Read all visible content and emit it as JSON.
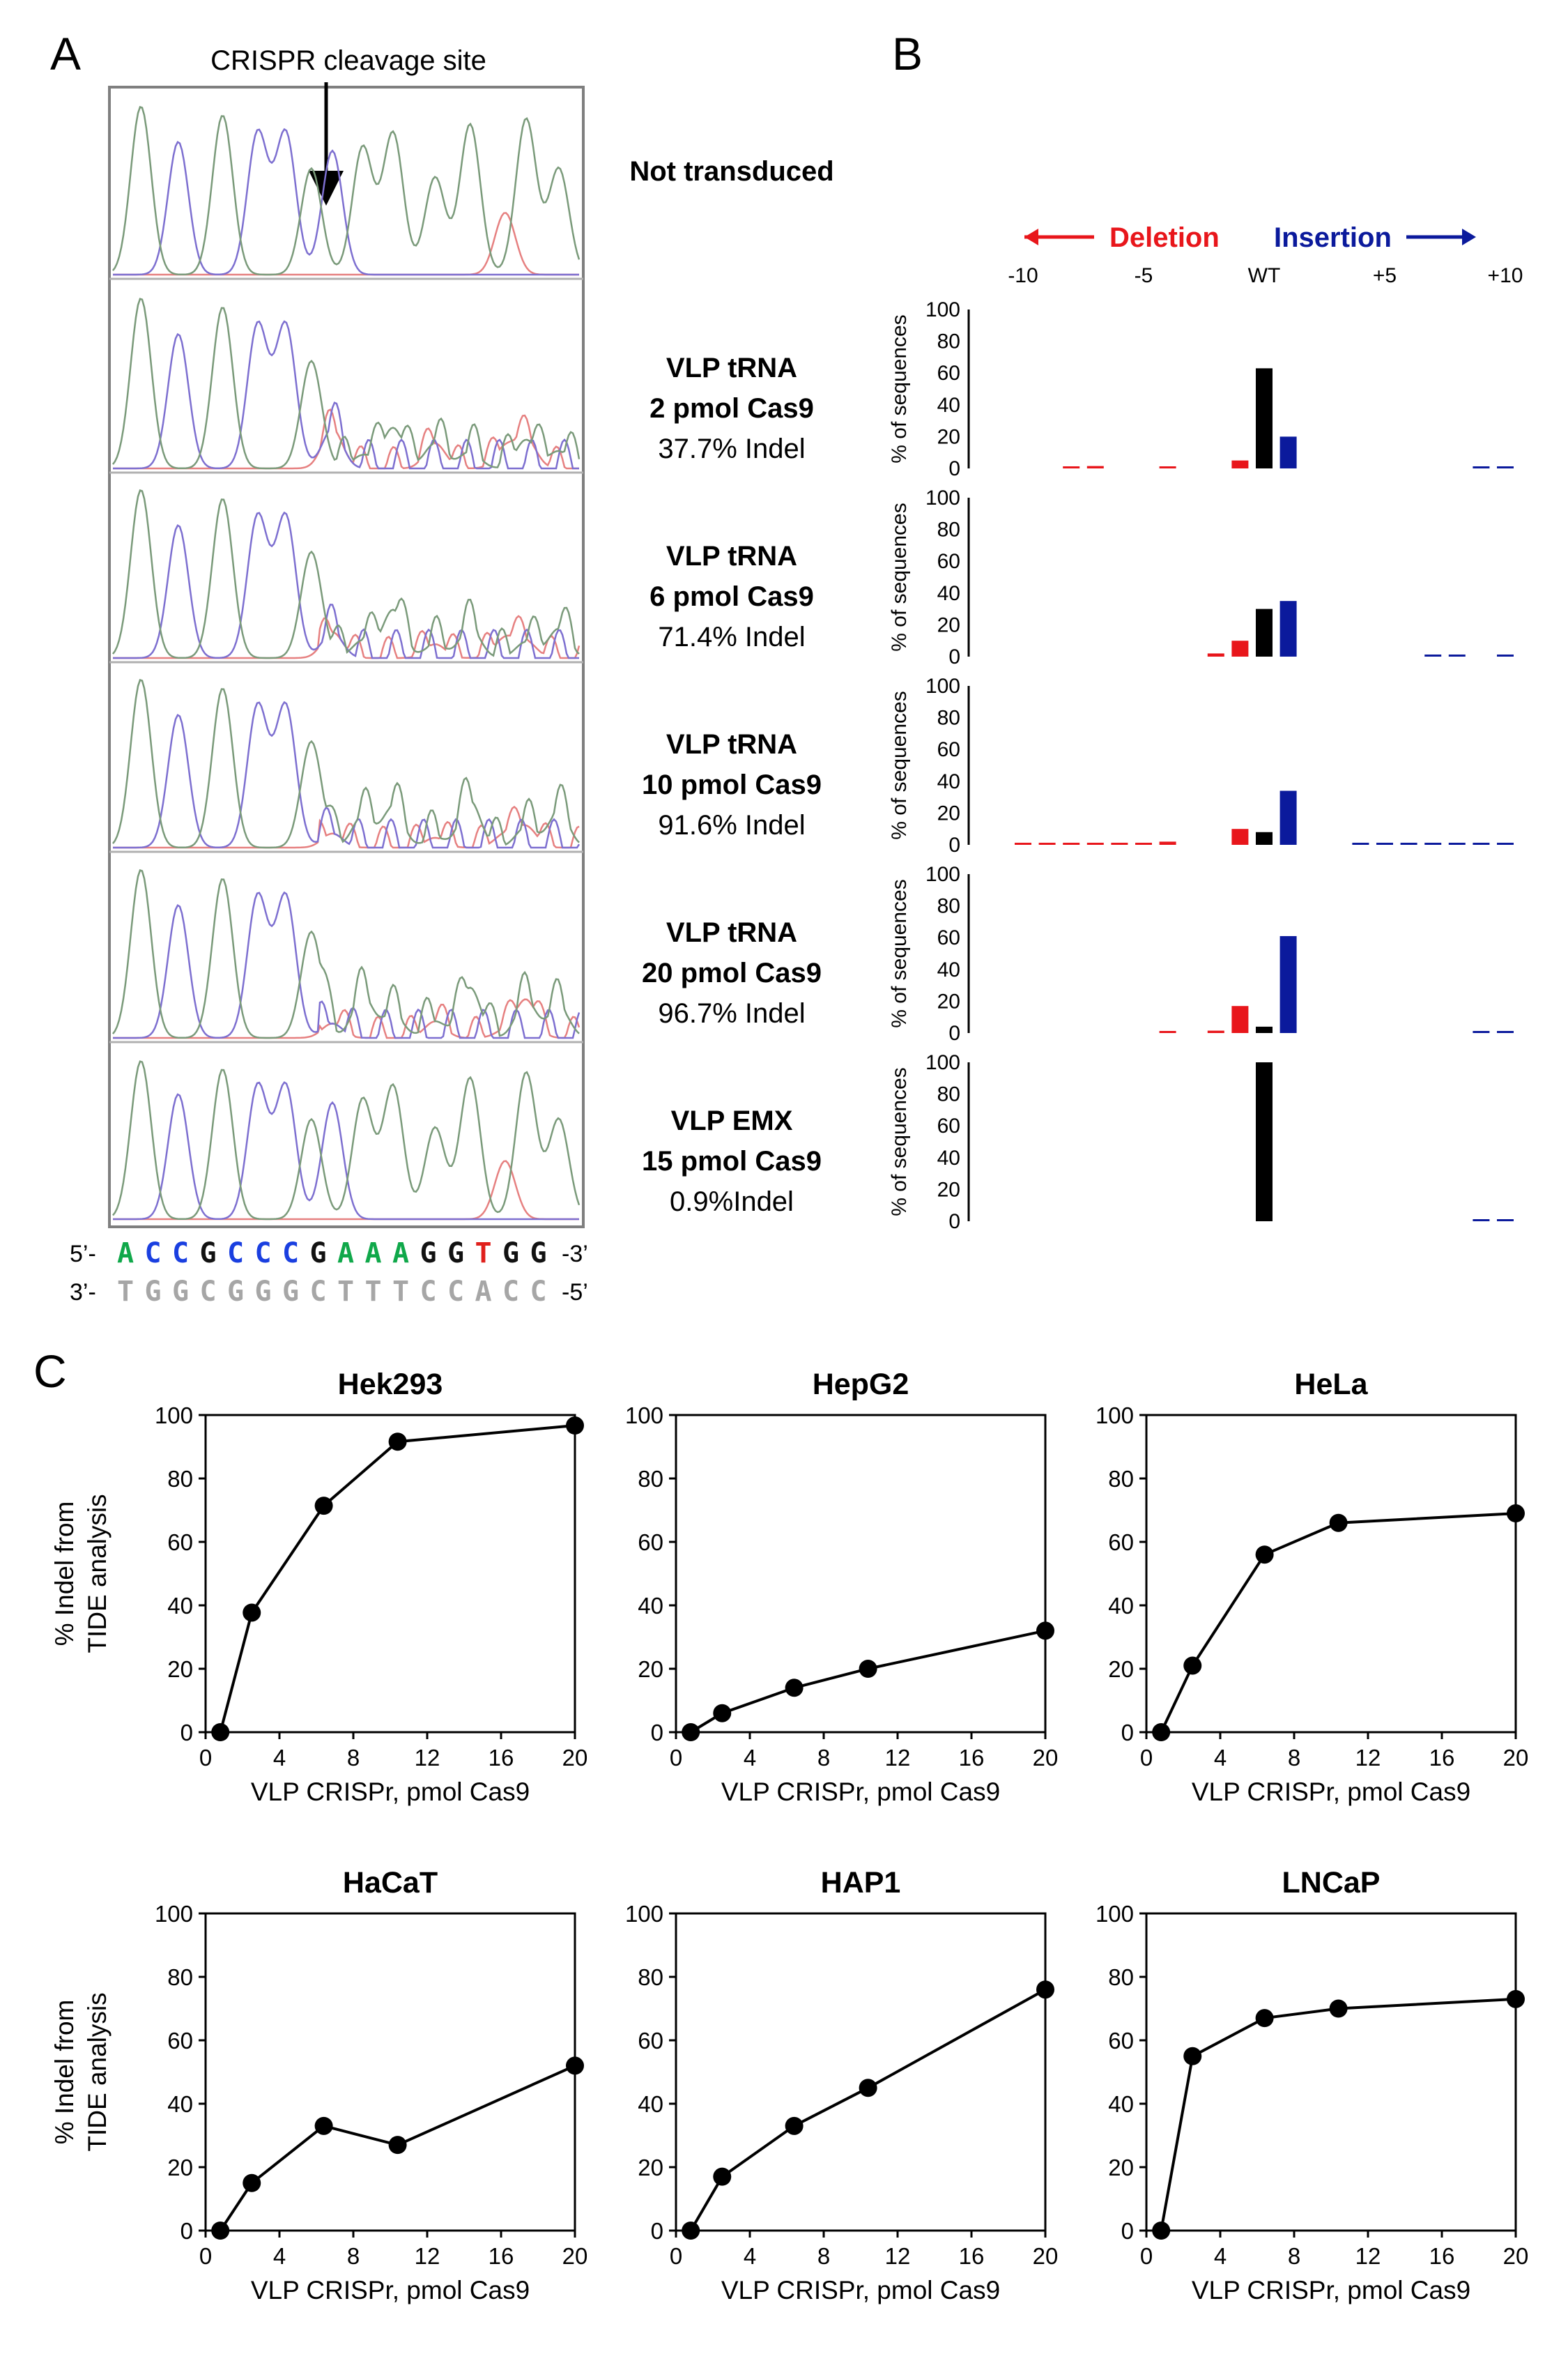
{
  "panel_labels": {
    "a": "A",
    "b": "B",
    "c": "C"
  },
  "panelA": {
    "cleavage_label": "CRISPR cleavage site",
    "samples": [
      {
        "lines": [
          "Not transduced"
        ],
        "bold": [
          true
        ]
      },
      {
        "lines": [
          "VLP tRNA",
          "2 pmol Cas9",
          "37.7% Indel"
        ],
        "bold": [
          true,
          true,
          false
        ]
      },
      {
        "lines": [
          "VLP tRNA",
          "6 pmol Cas9",
          "71.4% Indel"
        ],
        "bold": [
          true,
          true,
          false
        ]
      },
      {
        "lines": [
          "VLP tRNA",
          "10 pmol Cas9",
          "91.6% Indel"
        ],
        "bold": [
          true,
          true,
          false
        ]
      },
      {
        "lines": [
          "VLP tRNA",
          "20 pmol Cas9",
          "96.7% Indel"
        ],
        "bold": [
          true,
          true,
          false
        ]
      },
      {
        "lines": [
          "VLP EMX",
          "15 pmol Cas9",
          "0.9%Indel"
        ],
        "bold": [
          true,
          true,
          false
        ]
      }
    ],
    "sequence": {
      "top_prefix": "5’-",
      "top_suffix": "-3’",
      "top_bases": [
        "A",
        "C",
        "C",
        "G",
        "C",
        "C",
        "C",
        "G",
        "A",
        "A",
        "A",
        "G",
        "G",
        "T",
        "G",
        "G"
      ],
      "bottom_prefix": "3’-",
      "bottom_suffix": "-5’",
      "bottom_bases": [
        "T",
        "G",
        "G",
        "C",
        "G",
        "G",
        "G",
        "C",
        "T",
        "T",
        "T",
        "C",
        "C",
        "A",
        "C",
        "C"
      ],
      "colors": {
        "A": "#10a84a",
        "C": "#1a3fe0",
        "G": "#111111",
        "T": "#e0201c",
        "bottom": "#a6a6a6"
      }
    }
  },
  "panelB": {
    "deletion_label": "Deletion",
    "insertion_label": "Insertion",
    "x_ticks": [
      {
        "pos": -10,
        "label": "-10"
      },
      {
        "pos": -5,
        "label": "-5"
      },
      {
        "pos": 0,
        "label": "WT"
      },
      {
        "pos": 5,
        "label": "+5"
      },
      {
        "pos": 10,
        "label": "+10"
      }
    ],
    "ylabel": "% of sequences",
    "yticks": [
      "0",
      "20",
      "40",
      "60",
      "80",
      "100"
    ],
    "colors": {
      "deletion": "#e8161b",
      "wt": "#000000",
      "insertion": "#0b1a9c"
    }
  },
  "chart_data": [
    {
      "type": "bar",
      "panel": "B1",
      "title": "VLP tRNA 2 pmol Cas9",
      "x": [
        -8,
        -7,
        -4,
        -1,
        0,
        1,
        9,
        10
      ],
      "values": [
        0.5,
        1.5,
        1,
        5,
        63,
        20,
        0.5,
        0.5
      ],
      "ylabel": "% of sequences",
      "ylim": [
        0,
        100
      ]
    },
    {
      "type": "bar",
      "panel": "B2",
      "title": "VLP tRNA 6 pmol Cas9",
      "x": [
        -2,
        -1,
        0,
        1,
        7,
        8,
        10
      ],
      "values": [
        2,
        10,
        30,
        35,
        0.5,
        0.5,
        1
      ],
      "ylabel": "% of sequences",
      "ylim": [
        0,
        100
      ]
    },
    {
      "type": "bar",
      "panel": "B3",
      "title": "VLP tRNA 10 pmol Cas9",
      "x": [
        -10,
        -9,
        -8,
        -7,
        -6,
        -5,
        -4,
        -1,
        0,
        1,
        4,
        5,
        6,
        7,
        8,
        9,
        10
      ],
      "values": [
        1,
        0.5,
        0.5,
        1,
        1,
        0.5,
        2,
        10,
        8,
        34,
        0.5,
        1,
        1,
        1,
        0.5,
        1,
        1
      ],
      "ylabel": "% of sequences",
      "ylim": [
        0,
        100
      ]
    },
    {
      "type": "bar",
      "panel": "B4",
      "title": "VLP tRNA 20 pmol Cas9",
      "x": [
        -4,
        -2,
        -1,
        0,
        1,
        9,
        10
      ],
      "values": [
        1,
        1.5,
        17,
        4,
        61,
        0.5,
        1
      ],
      "ylabel": "% of sequences",
      "ylim": [
        0,
        100
      ]
    },
    {
      "type": "bar",
      "panel": "B5",
      "title": "VLP EMX 15 pmol Cas9",
      "x": [
        0,
        9,
        10
      ],
      "values": [
        100,
        0.5,
        0.5
      ],
      "ylabel": "% of sequences",
      "ylim": [
        0,
        100
      ]
    },
    {
      "type": "line",
      "panel": "C",
      "title": "Hek293",
      "x": [
        0,
        2,
        6,
        10,
        20
      ],
      "y": [
        0,
        37.7,
        71.4,
        91.6,
        96.7
      ],
      "xlabel": "VLP CRISPr, pmol Cas9",
      "ylabel": "% Indel from TIDE analysis",
      "xlim": [
        0,
        20
      ],
      "ylim": [
        0,
        100
      ]
    },
    {
      "type": "line",
      "panel": "C",
      "title": "HepG2",
      "x": [
        0,
        2,
        6,
        10,
        20
      ],
      "y": [
        0,
        6,
        14,
        20,
        32
      ],
      "xlabel": "VLP CRISPr, pmol Cas9",
      "ylabel": "% Indel from TIDE analysis",
      "xlim": [
        0,
        20
      ],
      "ylim": [
        0,
        100
      ]
    },
    {
      "type": "line",
      "panel": "C",
      "title": "HeLa",
      "x": [
        0,
        2,
        6,
        10,
        20
      ],
      "y": [
        0,
        21,
        56,
        66,
        69
      ],
      "xlabel": "VLP CRISPr, pmol Cas9",
      "ylabel": "% Indel from TIDE analysis",
      "xlim": [
        0,
        20
      ],
      "ylim": [
        0,
        100
      ]
    },
    {
      "type": "line",
      "panel": "C",
      "title": "HaCaT",
      "x": [
        0,
        2,
        6,
        10,
        20
      ],
      "y": [
        0,
        15,
        33,
        27,
        52
      ],
      "xlabel": "VLP CRISPr, pmol Cas9",
      "ylabel": "% Indel from TIDE analysis",
      "xlim": [
        0,
        20
      ],
      "ylim": [
        0,
        100
      ]
    },
    {
      "type": "line",
      "panel": "C",
      "title": "HAP1",
      "x": [
        0,
        2,
        6,
        10,
        20
      ],
      "y": [
        0,
        17,
        33,
        45,
        76
      ],
      "xlabel": "VLP CRISPr, pmol Cas9",
      "ylabel": "% Indel from TIDE analysis",
      "xlim": [
        0,
        20
      ],
      "ylim": [
        0,
        100
      ]
    },
    {
      "type": "line",
      "panel": "C",
      "title": "LNCaP",
      "x": [
        0,
        2,
        6,
        10,
        20
      ],
      "y": [
        0,
        55,
        67,
        70,
        73
      ],
      "xlabel": "VLP CRISPr, pmol Cas9",
      "ylabel": "% Indel from TIDE analysis",
      "xlim": [
        0,
        20
      ],
      "ylim": [
        0,
        100
      ]
    }
  ],
  "panelC": {
    "xticks": [
      "0",
      "4",
      "8",
      "12",
      "16",
      "20"
    ],
    "yticks": [
      "0",
      "20",
      "40",
      "60",
      "80",
      "100"
    ],
    "ylabel_lines": [
      "% Indel from",
      "TIDE analysis"
    ]
  }
}
